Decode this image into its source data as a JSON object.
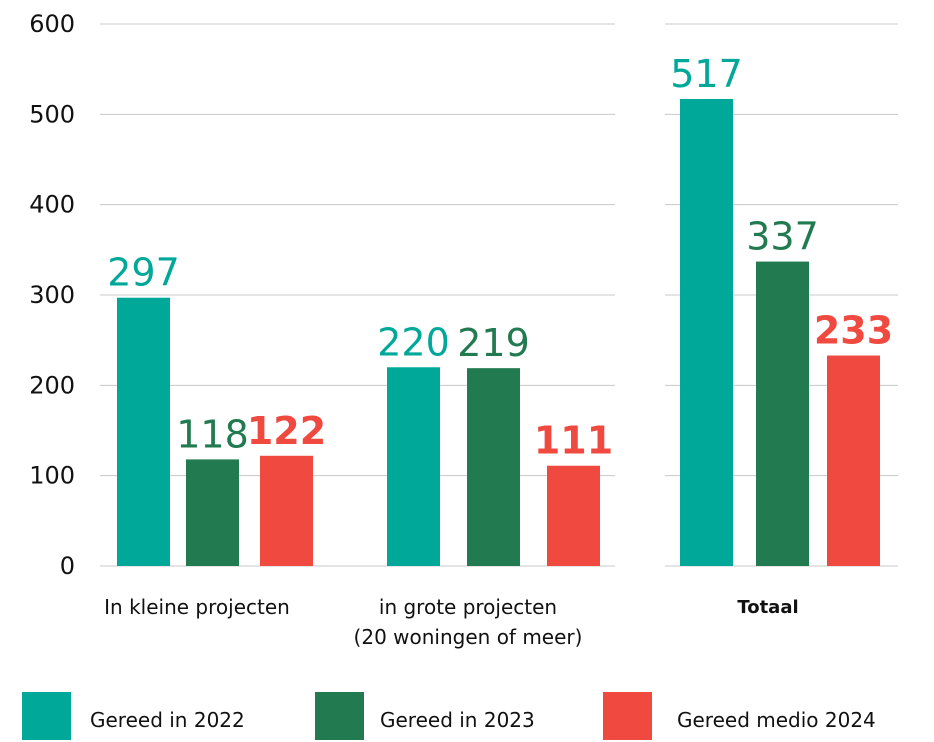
{
  "chart_data": {
    "type": "bar",
    "categories": [
      "In kleine projecten",
      "in grote projecten\n(20 woningen of meer)",
      "Totaal"
    ],
    "series": [
      {
        "name": "Gereed in 2022",
        "color": "#00a89a",
        "values": [
          297,
          220,
          517
        ]
      },
      {
        "name": "Gereed in 2023",
        "color": "#217a50",
        "values": [
          118,
          219,
          337
        ]
      },
      {
        "name": "Gereed medio 2024",
        "color": "#f04a40",
        "values": [
          122,
          111,
          233
        ],
        "label_weight": "bold"
      }
    ],
    "ylim": [
      0,
      600
    ],
    "yticks": [
      0,
      100,
      200,
      300,
      400,
      500,
      600
    ],
    "grid": true
  }
}
